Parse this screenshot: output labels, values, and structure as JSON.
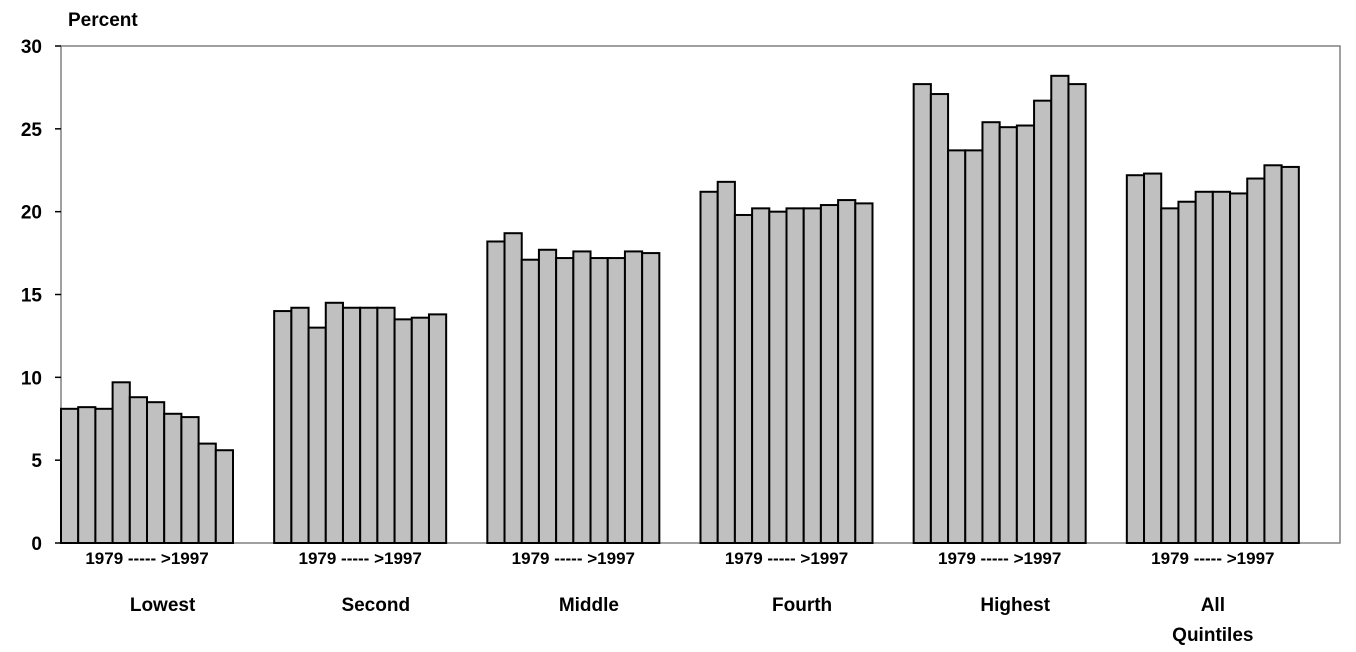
{
  "chart_data": {
    "type": "bar",
    "ylabel": "Percent",
    "ylim": [
      0,
      30
    ],
    "yticks": [
      "0",
      "5",
      "10",
      "15",
      "20",
      "25",
      "30"
    ],
    "ytick_values": [
      0,
      5,
      10,
      15,
      20,
      25,
      30
    ],
    "grid": false,
    "bar_color": "#c0c0c0",
    "range_label": "1979 ----- >1997",
    "groups": [
      {
        "label": [
          "Lowest"
        ],
        "values": [
          8.1,
          8.2,
          8.1,
          9.7,
          8.8,
          8.5,
          7.8,
          7.6,
          6.0,
          5.6
        ]
      },
      {
        "label": [
          "Second"
        ],
        "values": [
          14.0,
          14.2,
          13.0,
          14.5,
          14.2,
          14.2,
          14.2,
          13.5,
          13.6,
          13.8
        ]
      },
      {
        "label": [
          "Middle"
        ],
        "values": [
          18.2,
          18.7,
          17.1,
          17.7,
          17.2,
          17.6,
          17.2,
          17.2,
          17.6,
          17.5
        ]
      },
      {
        "label": [
          "Fourth"
        ],
        "values": [
          21.2,
          21.8,
          19.8,
          20.2,
          20.0,
          20.2,
          20.2,
          20.4,
          20.7,
          20.5
        ]
      },
      {
        "label": [
          "Highest"
        ],
        "values": [
          27.7,
          27.1,
          23.7,
          23.7,
          25.4,
          25.1,
          25.2,
          26.7,
          28.2,
          27.7
        ]
      },
      {
        "label": [
          "All",
          "Quintiles"
        ],
        "values": [
          22.2,
          22.3,
          20.2,
          20.6,
          21.2,
          21.2,
          21.1,
          22.0,
          22.8,
          22.7
        ]
      }
    ]
  }
}
